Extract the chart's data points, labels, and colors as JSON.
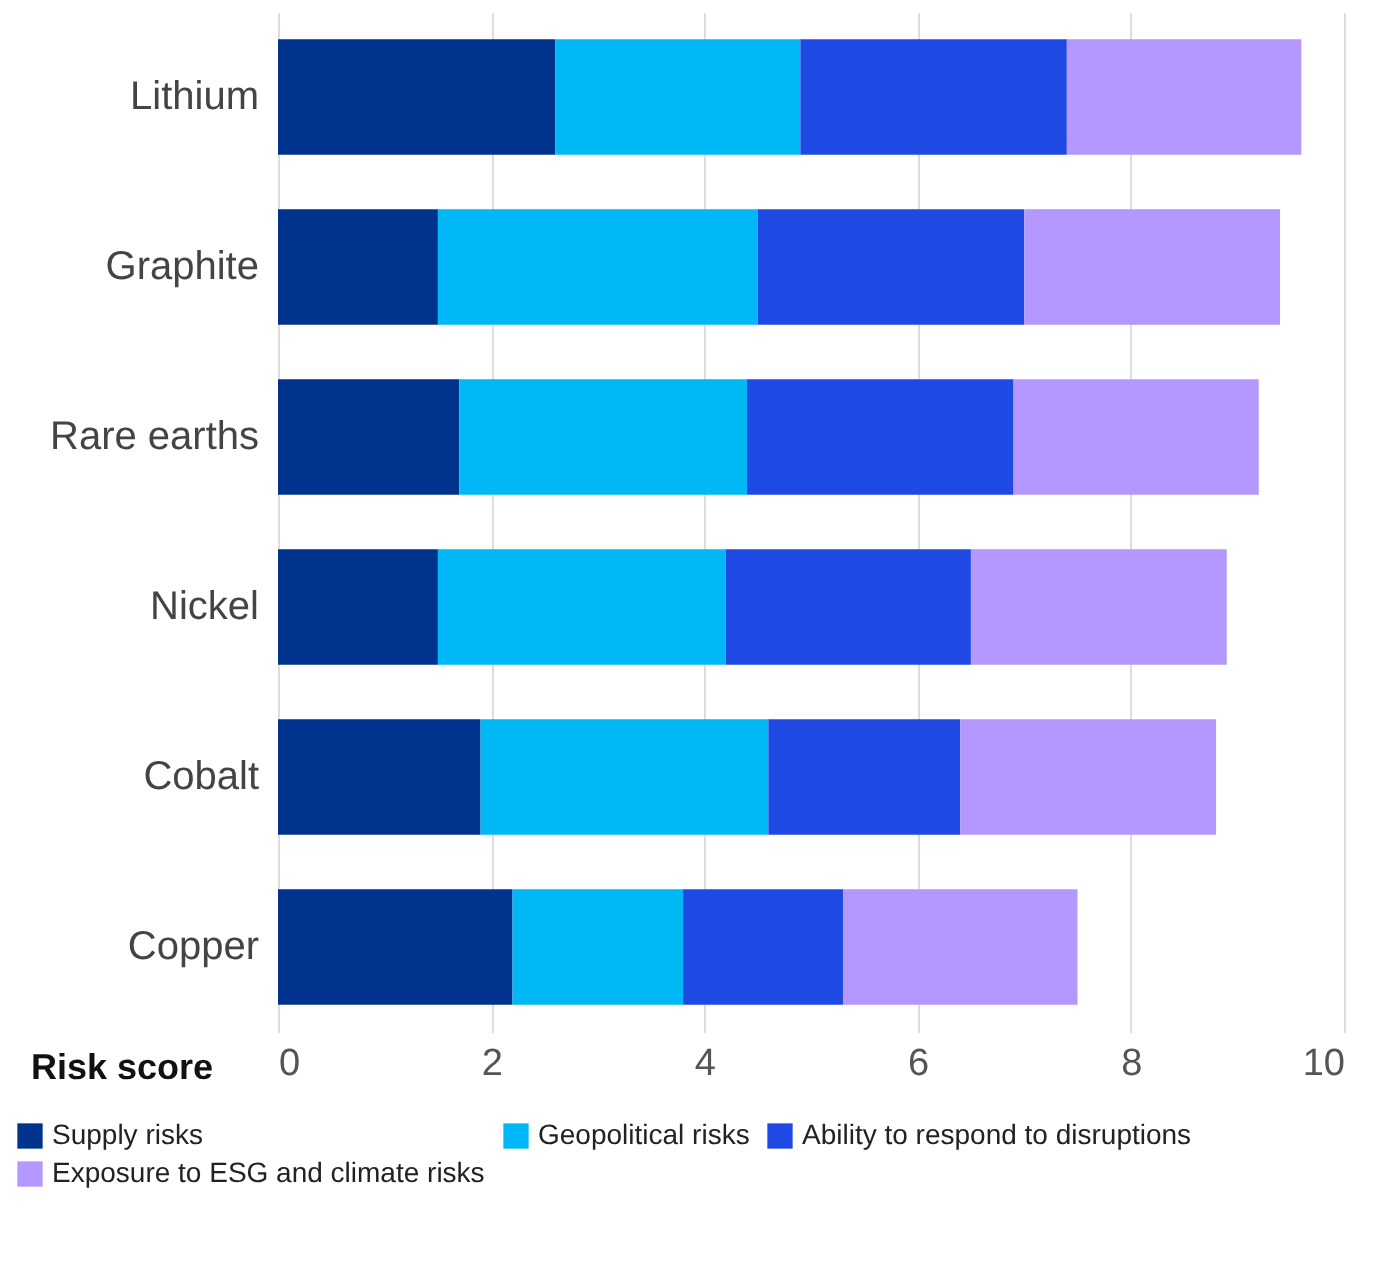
{
  "chart_data": {
    "type": "bar",
    "orientation": "horizontal",
    "stacked": true,
    "xlabel": "Risk score",
    "categories": [
      "Lithium",
      "Graphite",
      "Rare earths",
      "Nickel",
      "Cobalt",
      "Copper"
    ],
    "series": [
      {
        "name": "Supply risks",
        "color": "#00338d",
        "values": [
          2.6,
          1.5,
          1.7,
          1.5,
          1.9,
          2.2
        ]
      },
      {
        "name": "Geopolitical risks",
        "color": "#00b8f5",
        "values": [
          2.3,
          3.0,
          2.7,
          2.7,
          2.7,
          1.6
        ]
      },
      {
        "name": "Ability to respond to disruptions",
        "color": "#1e49e2",
        "values": [
          2.5,
          2.5,
          2.5,
          2.3,
          1.8,
          1.5
        ]
      },
      {
        "name": "Exposure to ESG and climate risks",
        "color": "#b497ff",
        "values": [
          2.2,
          2.4,
          2.3,
          2.4,
          2.4,
          2.2
        ]
      }
    ],
    "xlim": [
      0,
      10
    ],
    "xticks": [
      0,
      2,
      4,
      6,
      8,
      10
    ],
    "grid": "x",
    "legend": "bottom"
  }
}
